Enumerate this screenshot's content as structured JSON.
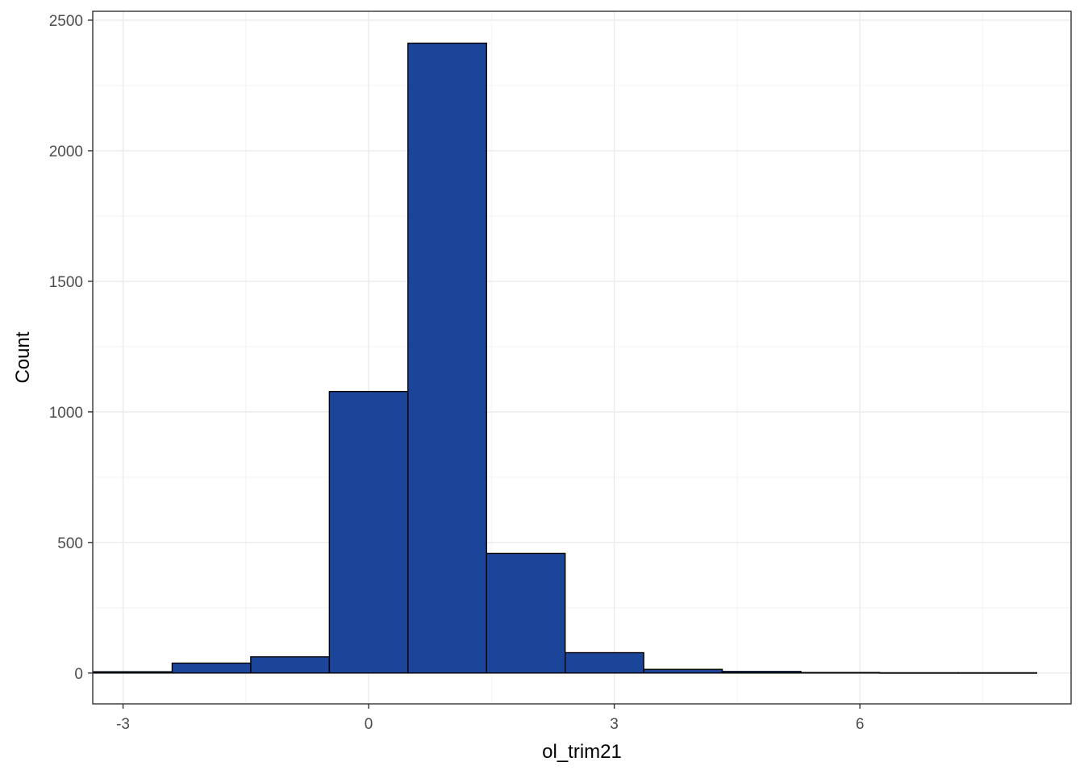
{
  "chart_data": {
    "type": "bar",
    "subtype": "histogram",
    "xlabel": "ol_trim21",
    "ylabel": "Count",
    "xlim": [
      -3.37,
      8.58
    ],
    "ylim": [
      -118,
      2534
    ],
    "x_ticks": [
      -3,
      0,
      3,
      6
    ],
    "x_minor_ticks": [
      -1.5,
      1.5,
      4.5,
      7.5
    ],
    "y_ticks": [
      0,
      500,
      1000,
      1500,
      2000,
      2500
    ],
    "y_minor_ticks": [
      250,
      750,
      1250,
      1750,
      2250
    ],
    "bin_width": 0.96,
    "bins": [
      {
        "x0": -3.36,
        "x1": -2.4,
        "count": 5
      },
      {
        "x0": -2.4,
        "x1": -1.44,
        "count": 38
      },
      {
        "x0": -1.44,
        "x1": -0.48,
        "count": 62
      },
      {
        "x0": -0.48,
        "x1": 0.48,
        "count": 1078
      },
      {
        "x0": 0.48,
        "x1": 1.44,
        "count": 2412
      },
      {
        "x0": 1.44,
        "x1": 2.4,
        "count": 458
      },
      {
        "x0": 2.4,
        "x1": 3.36,
        "count": 78
      },
      {
        "x0": 3.36,
        "x1": 4.32,
        "count": 14
      },
      {
        "x0": 4.32,
        "x1": 5.28,
        "count": 6
      },
      {
        "x0": 5.28,
        "x1": 6.24,
        "count": 2
      },
      {
        "x0": 6.24,
        "x1": 7.2,
        "count": 1
      },
      {
        "x0": 7.2,
        "x1": 8.16,
        "count": 1
      }
    ],
    "colors": {
      "fill": "#1a4599",
      "outline": "#000000",
      "grid_major": "#ebebeb",
      "grid_minor": "#f3f3f3",
      "panel_border": "#333333"
    },
    "grid": true,
    "legend": "none"
  }
}
